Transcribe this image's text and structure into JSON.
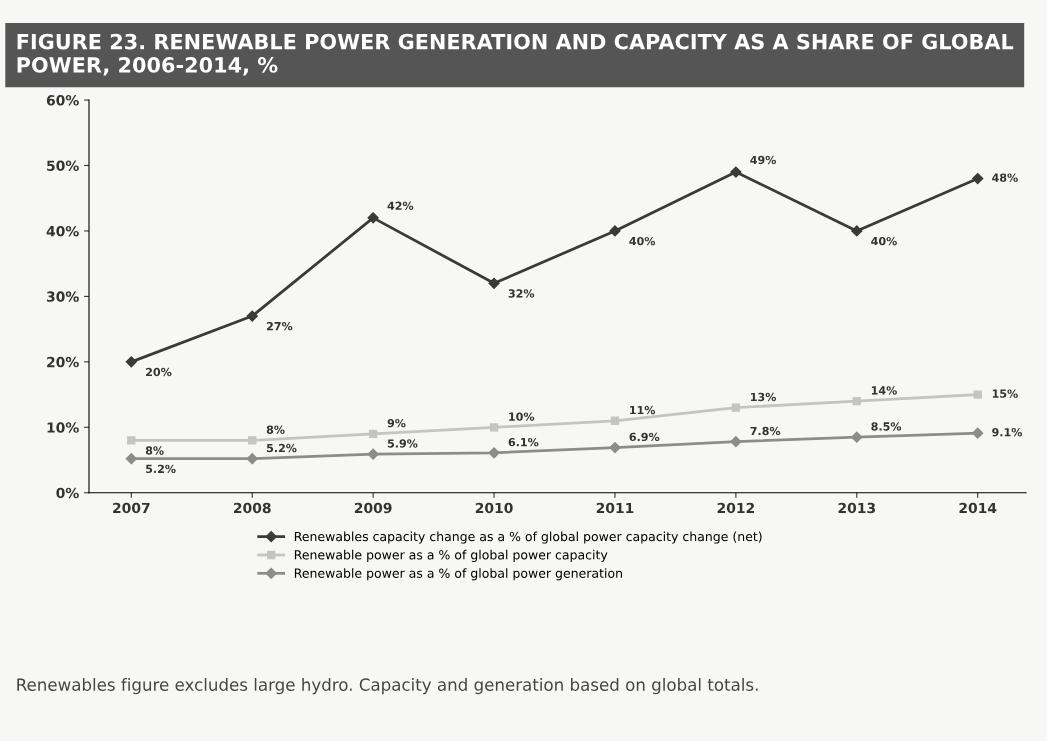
{
  "chart_data": {
    "type": "line",
    "title": "FIGURE 23. RENEWABLE POWER GENERATION AND CAPACITY AS A SHARE OF GLOBAL POWER, 2006-2014, %",
    "categories": [
      "2007",
      "2008",
      "2009",
      "2010",
      "2011",
      "2012",
      "2013",
      "2014"
    ],
    "series": [
      {
        "name": "Renewables capacity change as a % of global power capacity change (net)",
        "color": "#3a3a3a",
        "marker": "diamond",
        "values": [
          20,
          27,
          42,
          32,
          40,
          49,
          40,
          48
        ],
        "value_labels": [
          "20%",
          "27%",
          "42%",
          "32%",
          "40%",
          "49%",
          "40%",
          "48%"
        ]
      },
      {
        "name": "Renewable power as a % of global power capacity",
        "color": "#c4c4c4",
        "marker": "square",
        "values": [
          8,
          8,
          9,
          10,
          11,
          13,
          14,
          15
        ],
        "value_labels": [
          "8%",
          "8%",
          "9%",
          "10%",
          "11%",
          "13%",
          "14%",
          "15%"
        ]
      },
      {
        "name": "Renewable power as a % of global power generation",
        "color": "#8c8c8c",
        "marker": "diamond",
        "values": [
          5.2,
          5.2,
          5.9,
          6.1,
          6.9,
          7.8,
          8.5,
          9.1
        ],
        "value_labels": [
          "5.2%",
          "5.2%",
          "5.9%",
          "6.1%",
          "6.9%",
          "7.8%",
          "8.5%",
          "9.1%"
        ]
      }
    ],
    "ylim": [
      0,
      60
    ],
    "yticks": [
      {
        "value": 0,
        "label": "0%"
      },
      {
        "value": 10,
        "label": "10%"
      },
      {
        "value": 20,
        "label": "20%"
      },
      {
        "value": 30,
        "label": "30%"
      },
      {
        "value": 40,
        "label": "40%"
      },
      {
        "value": 50,
        "label": "50%"
      },
      {
        "value": 60,
        "label": "60%"
      }
    ],
    "grid": false,
    "legend": "bottom",
    "line_style": "solid",
    "annotations": [
      "Renewables figure excludes large hydro. Capacity and generation based on global totals."
    ]
  }
}
